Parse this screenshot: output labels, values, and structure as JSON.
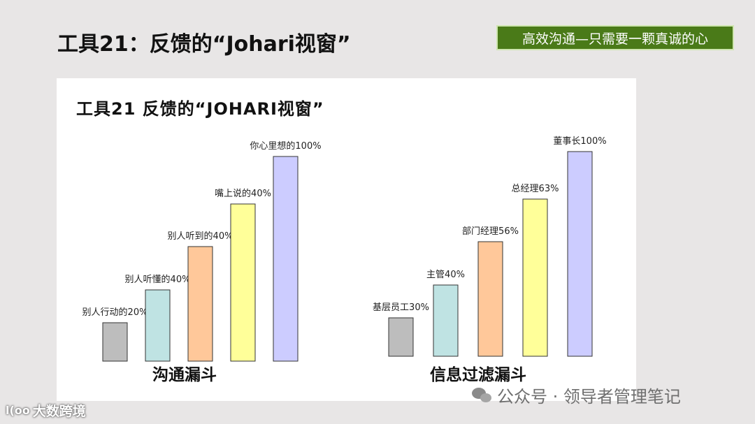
{
  "slide": {
    "title": "工具21：反馈的“Johari视窗”",
    "tagline": "高效沟通—只需要一颗真诚的心"
  },
  "panel": {
    "title": "工具21 反馈的“JOHARI视窗”"
  },
  "chart_data": [
    {
      "type": "bar",
      "title": "沟通漏斗",
      "categories": [
        "别人行动的",
        "别人听懂的",
        "别人听到的",
        "嘴上说的",
        "你心里想的"
      ],
      "labels": [
        "别人行动的20%",
        "别人听懂的40%",
        "别人听到的40%",
        "嘴上说的40%",
        "你心里想的100%"
      ],
      "values": [
        20,
        40,
        40,
        40,
        100
      ],
      "visual_heights": [
        55,
        102,
        164,
        225,
        293
      ],
      "colors": [
        "#bdbdbd",
        "#bfe3e3",
        "#ffc89a",
        "#ffff99",
        "#ccccff"
      ],
      "ylim": [
        0,
        100
      ]
    },
    {
      "type": "bar",
      "title": "信息过滤漏斗",
      "categories": [
        "基层员工",
        "主管",
        "部门经理",
        "总经理",
        "董事长"
      ],
      "labels": [
        "基层员工30%",
        "主管40%",
        "部门经理56%",
        "总经理63%",
        "董事长100%"
      ],
      "values": [
        30,
        40,
        56,
        63,
        100
      ],
      "visual_heights": [
        55,
        102,
        164,
        225,
        293
      ],
      "colors": [
        "#bdbdbd",
        "#bfe3e3",
        "#ffc89a",
        "#ffff99",
        "#ccccff"
      ],
      "ylim": [
        0,
        100
      ]
    }
  ],
  "watermark": {
    "text": "公众号 · 领导者管理笔记",
    "icon": "wechat-icon"
  },
  "corner_logo": {
    "mark": "l(oo",
    "text": "大数跨境"
  }
}
